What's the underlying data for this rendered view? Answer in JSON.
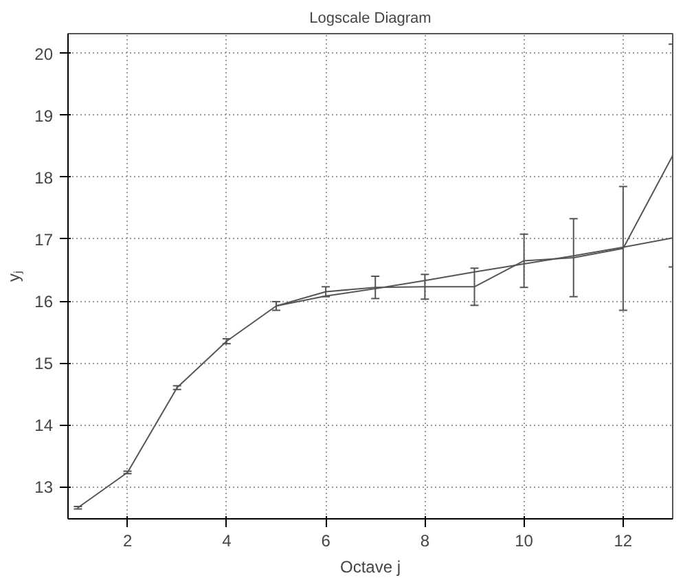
{
  "chart_data": {
    "type": "line",
    "title": "Logscale Diagram",
    "xlabel": "Octave j",
    "ylabel": "yⱼ",
    "xlim": [
      0.8,
      13
    ],
    "ylim": [
      12.48,
      20.32
    ],
    "xticks": [
      2,
      4,
      6,
      8,
      10,
      12
    ],
    "yticks": [
      13,
      14,
      15,
      16,
      17,
      18,
      19,
      20
    ],
    "grid": true,
    "line_style": "solid",
    "series": [
      {
        "color": "#555555",
        "x": [
          1,
          2,
          3,
          4,
          5,
          6,
          7,
          8,
          9,
          10,
          11,
          12,
          13
        ],
        "values": [
          12.66,
          13.23,
          14.6,
          15.35,
          15.92,
          16.15,
          16.22,
          16.23,
          16.23,
          16.65,
          16.7,
          16.85,
          18.35
        ],
        "errors": [
          0.02,
          0.02,
          0.03,
          0.04,
          0.07,
          0.08,
          0.18,
          0.2,
          0.3,
          0.43,
          0.63,
          1.0,
          1.8
        ]
      },
      {
        "color": "#555555",
        "x": [
          5,
          6,
          7,
          8,
          9,
          10,
          11,
          12,
          13
        ],
        "values": [
          15.92,
          16.08,
          16.2,
          16.33,
          16.47,
          16.6,
          16.73,
          16.87,
          17.02
        ]
      }
    ]
  }
}
